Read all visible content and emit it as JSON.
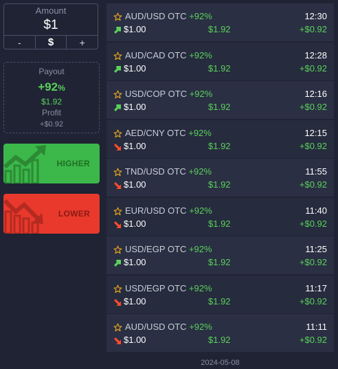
{
  "amount": {
    "label": "Amount",
    "value": "$1",
    "minus": "-",
    "currency": "$",
    "plus": "+"
  },
  "payout": {
    "label": "Payout",
    "percent": "+92",
    "percent_unit": "%",
    "amount": "$1.92",
    "profit_label": "Profit",
    "profit_value": "+$0.92"
  },
  "buttons": {
    "higher": "HIGHER",
    "lower": "LOWER"
  },
  "colors": {
    "up": "#5bd15b",
    "down": "#ff4b2b",
    "star": "#e0a020",
    "higher_bg": "#3cb84a",
    "lower_bg": "#e8392c"
  },
  "trades": [
    {
      "pair": "AUD/USD OTC",
      "pct": "+92%",
      "time": "12:30",
      "invest": "$1.00",
      "payout": "$1.92",
      "profit": "+$0.92",
      "direction": "up"
    },
    {
      "pair": "AUD/CAD OTC",
      "pct": "+92%",
      "time": "12:28",
      "invest": "$1.00",
      "payout": "$1.92",
      "profit": "+$0.92",
      "direction": "up"
    },
    {
      "pair": "USD/COP OTC",
      "pct": "+92%",
      "time": "12:16",
      "invest": "$1.00",
      "payout": "$1.92",
      "profit": "+$0.92",
      "direction": "up"
    },
    {
      "pair": "AED/CNY OTC",
      "pct": "+92%",
      "time": "12:15",
      "invest": "$1.00",
      "payout": "$1.92",
      "profit": "+$0.92",
      "direction": "down"
    },
    {
      "pair": "TND/USD OTC",
      "pct": "+92%",
      "time": "11:55",
      "invest": "$1.00",
      "payout": "$1.92",
      "profit": "+$0.92",
      "direction": "down"
    },
    {
      "pair": "EUR/USD OTC",
      "pct": "+92%",
      "time": "11:40",
      "invest": "$1.00",
      "payout": "$1.92",
      "profit": "+$0.92",
      "direction": "down"
    },
    {
      "pair": "USD/EGP OTC",
      "pct": "+92%",
      "time": "11:25",
      "invest": "$1.00",
      "payout": "$1.92",
      "profit": "+$0.92",
      "direction": "up"
    },
    {
      "pair": "USD/EGP OTC",
      "pct": "+92%",
      "time": "11:17",
      "invest": "$1.00",
      "payout": "$1.92",
      "profit": "+$0.92",
      "direction": "down"
    },
    {
      "pair": "AUD/USD OTC",
      "pct": "+92%",
      "time": "11:11",
      "invest": "$1.00",
      "payout": "$1.92",
      "profit": "+$0.92",
      "direction": "down"
    }
  ],
  "date": "2024-05-08"
}
